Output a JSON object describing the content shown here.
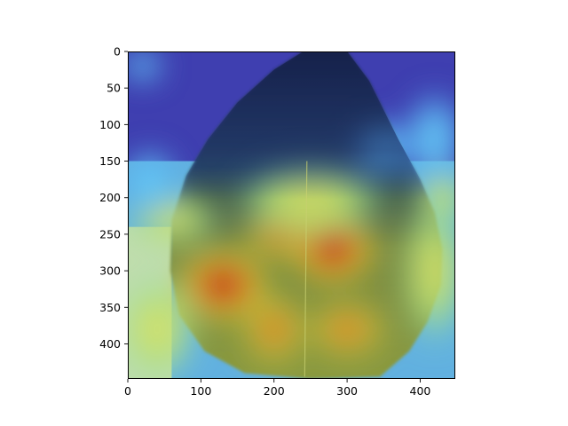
{
  "chart_data": {
    "type": "heatmap",
    "description": "Leaf image with attention heatmap overlay (imshow)",
    "xlim": [
      0,
      448
    ],
    "ylim": [
      448,
      0
    ],
    "x_ticks": [
      0,
      100,
      200,
      300,
      400
    ],
    "y_ticks": [
      0,
      50,
      100,
      150,
      200,
      250,
      300,
      350,
      400
    ],
    "x_tick_labels": [
      "0",
      "100",
      "200",
      "300",
      "400"
    ],
    "y_tick_labels": [
      "0",
      "50",
      "100",
      "150",
      "200",
      "250",
      "300",
      "350",
      "400"
    ],
    "grid": false,
    "colormap": "jet",
    "overlay_alpha": 0.5,
    "background_colormap_low": "#3f3fb0",
    "leaf_shape": [
      [
        240,
        0
      ],
      [
        300,
        0
      ],
      [
        330,
        40
      ],
      [
        370,
        120
      ],
      [
        400,
        175
      ],
      [
        420,
        220
      ],
      [
        430,
        270
      ],
      [
        428,
        320
      ],
      [
        410,
        370
      ],
      [
        385,
        410
      ],
      [
        345,
        445
      ],
      [
        250,
        448
      ],
      [
        160,
        440
      ],
      [
        105,
        410
      ],
      [
        70,
        360
      ],
      [
        58,
        300
      ],
      [
        60,
        230
      ],
      [
        80,
        170
      ],
      [
        110,
        120
      ],
      [
        150,
        70
      ],
      [
        200,
        25
      ]
    ],
    "hotspots": [
      {
        "x": 280,
        "y": 270,
        "rx": 65,
        "ry": 55,
        "intensity": 1.0
      },
      {
        "x": 130,
        "y": 320,
        "rx": 70,
        "ry": 55,
        "intensity": 0.95
      },
      {
        "x": 210,
        "y": 250,
        "rx": 60,
        "ry": 40,
        "intensity": 0.7
      },
      {
        "x": 200,
        "y": 380,
        "rx": 50,
        "ry": 55,
        "intensity": 0.8
      },
      {
        "x": 300,
        "y": 380,
        "rx": 60,
        "ry": 45,
        "intensity": 0.65
      },
      {
        "x": 250,
        "y": 200,
        "rx": 110,
        "ry": 60,
        "intensity": 0.6
      },
      {
        "x": 40,
        "y": 380,
        "rx": 60,
        "ry": 80,
        "intensity": 0.55
      },
      {
        "x": 420,
        "y": 300,
        "rx": 50,
        "ry": 110,
        "intensity": 0.45
      },
      {
        "x": 60,
        "y": 230,
        "rx": 70,
        "ry": 40,
        "intensity": 0.45
      },
      {
        "x": 30,
        "y": 180,
        "rx": 40,
        "ry": 50,
        "intensity": 0.35
      },
      {
        "x": 20,
        "y": 20,
        "rx": 30,
        "ry": 25,
        "intensity": 0.4
      },
      {
        "x": 420,
        "y": 120,
        "rx": 45,
        "ry": 70,
        "intensity": 0.35
      },
      {
        "x": 430,
        "y": 200,
        "rx": 40,
        "ry": 40,
        "intensity": 0.45
      },
      {
        "x": 350,
        "y": 130,
        "rx": 45,
        "ry": 40,
        "intensity": 0.25
      }
    ]
  }
}
